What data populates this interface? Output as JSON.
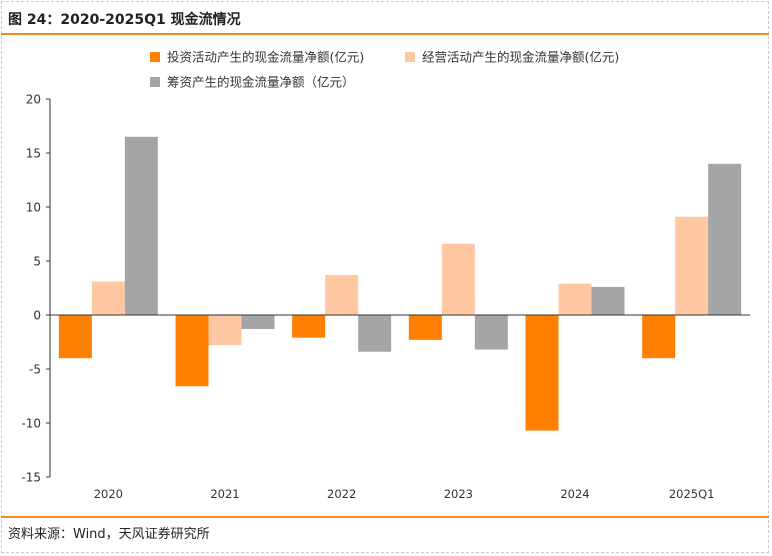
{
  "figure": {
    "title": "图 24：2020-2025Q1 现金流情况",
    "source": "资料来源：Wind，天风证券研究所"
  },
  "chart_data": {
    "type": "bar",
    "categories": [
      "2020",
      "2021",
      "2022",
      "2023",
      "2024",
      "2025Q1"
    ],
    "series": [
      {
        "name": "投资活动产生的现金流量净额(亿元)",
        "color": "#ff7f00",
        "values": [
          -4.0,
          -6.6,
          -2.1,
          -2.3,
          -10.7,
          -4.0
        ]
      },
      {
        "name": "经营活动产生的现金流量净额(亿元)",
        "color": "#ffc7a2",
        "values": [
          3.1,
          -2.8,
          3.7,
          6.6,
          2.9,
          9.1
        ]
      },
      {
        "name": "筹资产生的现金流量净额（亿元）",
        "color": "#a5a5a5",
        "values": [
          16.5,
          -1.3,
          -3.4,
          -3.2,
          2.6,
          14.0
        ]
      }
    ],
    "ylim": [
      -15,
      20
    ],
    "yticks": [
      20,
      15,
      10,
      5,
      0,
      -5,
      -10,
      -15
    ],
    "ytick_labels": [
      "20",
      "15",
      "10",
      "5",
      "0",
      "-5",
      "-10",
      "-15"
    ],
    "grid": false,
    "legend_position": "top"
  }
}
